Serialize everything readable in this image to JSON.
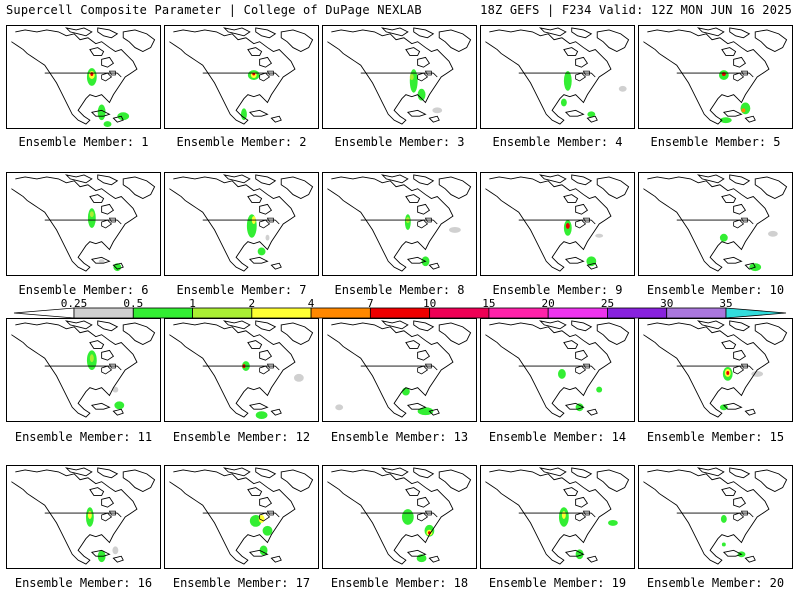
{
  "header": {
    "title": "Supercell Composite Parameter | College of DuPage NEXLAB",
    "run_info": "18Z GEFS | F234 Valid: 12Z MON JUN 16 2025"
  },
  "colorbar": {
    "labels": [
      "0.25",
      "0.5",
      "1",
      "2",
      "4",
      "7",
      "10",
      "15",
      "20",
      "25",
      "30",
      "35"
    ],
    "colors": [
      "#ffffff",
      "#d0d0d0",
      "#33ee33",
      "#aaee33",
      "#ffff33",
      "#ff8800",
      "#ee0000",
      "#ee0055",
      "#ff22aa",
      "#ee33ee",
      "#8822dd",
      "#aa77dd",
      "#33dddd"
    ]
  },
  "panels": [
    {
      "label": "Ensemble Member: 1"
    },
    {
      "label": "Ensemble Member: 2"
    },
    {
      "label": "Ensemble Member: 3"
    },
    {
      "label": "Ensemble Member: 4"
    },
    {
      "label": "Ensemble Member: 5"
    },
    {
      "label": "Ensemble Member: 6"
    },
    {
      "label": "Ensemble Member: 7"
    },
    {
      "label": "Ensemble Member: 8"
    },
    {
      "label": "Ensemble Member: 9"
    },
    {
      "label": "Ensemble Member: 10"
    },
    {
      "label": "Ensemble Member: 11"
    },
    {
      "label": "Ensemble Member: 12"
    },
    {
      "label": "Ensemble Member: 13"
    },
    {
      "label": "Ensemble Member: 14"
    },
    {
      "label": "Ensemble Member: 15"
    },
    {
      "label": "Ensemble Member: 16"
    },
    {
      "label": "Ensemble Member: 17"
    },
    {
      "label": "Ensemble Member: 18"
    },
    {
      "label": "Ensemble Member: 19"
    },
    {
      "label": "Ensemble Member: 20"
    }
  ]
}
